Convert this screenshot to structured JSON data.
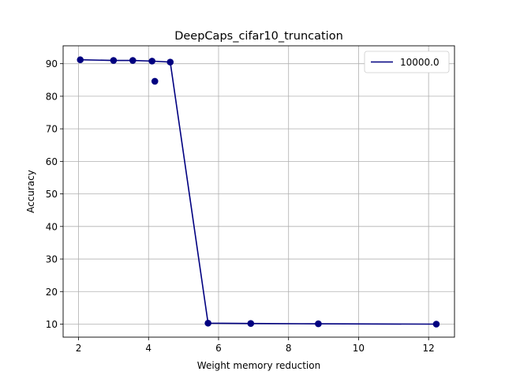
{
  "chart_data": {
    "type": "line",
    "title": "DeepCaps_cifar10_truncation",
    "xlabel": "Weight memory reduction",
    "ylabel": "Accuracy",
    "xlim": [
      1.56,
      12.74
    ],
    "ylim": [
      6.0,
      95.5
    ],
    "x_ticks": [
      2,
      4,
      6,
      8,
      10,
      12
    ],
    "y_ticks": [
      10,
      20,
      30,
      40,
      50,
      60,
      70,
      80,
      90
    ],
    "grid": true,
    "legend_position": "top-right",
    "series": [
      {
        "name": "10000.0",
        "color": "#000080",
        "line": [
          {
            "x": 2.05,
            "y": 91.2
          },
          {
            "x": 3.0,
            "y": 91.0
          },
          {
            "x": 3.55,
            "y": 91.0
          },
          {
            "x": 4.1,
            "y": 90.8
          },
          {
            "x": 4.62,
            "y": 90.5
          },
          {
            "x": 5.7,
            "y": 10.3
          },
          {
            "x": 6.92,
            "y": 10.2
          },
          {
            "x": 8.85,
            "y": 10.1
          },
          {
            "x": 12.22,
            "y": 10.0
          }
        ],
        "scatter": [
          {
            "x": 2.05,
            "y": 91.2
          },
          {
            "x": 3.0,
            "y": 91.0
          },
          {
            "x": 3.55,
            "y": 91.0
          },
          {
            "x": 4.1,
            "y": 90.8
          },
          {
            "x": 4.18,
            "y": 84.6
          },
          {
            "x": 4.62,
            "y": 90.5
          },
          {
            "x": 5.7,
            "y": 10.3
          },
          {
            "x": 6.92,
            "y": 10.2
          },
          {
            "x": 8.85,
            "y": 10.1
          },
          {
            "x": 12.22,
            "y": 10.0
          }
        ]
      }
    ]
  }
}
